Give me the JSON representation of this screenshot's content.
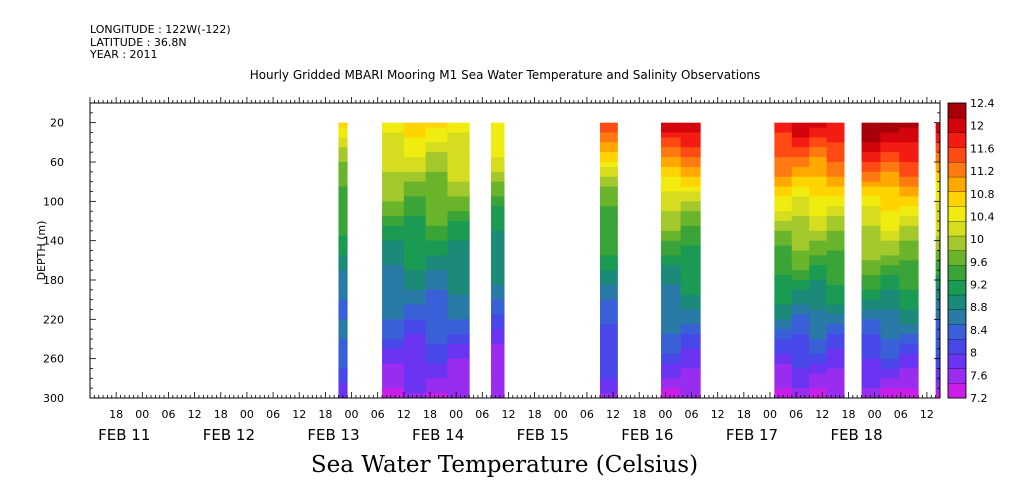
{
  "header": {
    "longitude": "LONGITUDE : 122W(-122)",
    "latitude": "LATITUDE : 36.8N",
    "year": "YEAR : 2011"
  },
  "chart_data": {
    "type": "heatmap",
    "title": "Hourly Gridded MBARI Mooring M1 Sea Water Temperature and Salinity Observations",
    "subtitle": "Sea Water Temperature (Celsius)",
    "ylabel": "DEPTH (m)",
    "xlabel": "",
    "y_inverted": true,
    "y_ticks": [
      20,
      60,
      100,
      140,
      180,
      220,
      260,
      300
    ],
    "ylim": [
      300,
      0
    ],
    "x_hours_range": [
      "2011-02-10 12:00",
      "2011-02-18 15:00"
    ],
    "x_hour_ticks": [
      "18",
      "00",
      "06",
      "12",
      "18",
      "00",
      "06",
      "12",
      "18",
      "00",
      "06",
      "12",
      "18",
      "00",
      "06",
      "12",
      "18",
      "00",
      "06",
      "12",
      "18",
      "00",
      "06",
      "12",
      "18",
      "00",
      "06",
      "12",
      "18",
      "00",
      "06",
      "12"
    ],
    "x_day_labels": [
      "FEB 11",
      "FEB 12",
      "FEB 13",
      "FEB 14",
      "FEB 15",
      "FEB 16",
      "FEB 17",
      "FEB 18"
    ],
    "colorbar": {
      "levels": [
        7.2,
        7.6,
        8,
        8.4,
        8.8,
        9.2,
        9.6,
        10,
        10.4,
        10.8,
        11.2,
        11.6,
        12,
        12.4
      ],
      "colors": [
        "#c81ee8",
        "#9a2cf0",
        "#6a34f2",
        "#4848e8",
        "#3a60d8",
        "#2a7aa8",
        "#1c8a78",
        "#1a9a52",
        "#3aa438",
        "#6ab42c",
        "#a2c82c",
        "#d6dc1e",
        "#f0ec10",
        "#ffd400",
        "#ffa800",
        "#ff7a10",
        "#ff4a14",
        "#f41c12",
        "#d4040c",
        "#a80008"
      ]
    },
    "data_segments": [
      {
        "start": "2011-02-12 21:00",
        "end": "2011-02-12 23:00",
        "surface_temp": 10.6,
        "temp_at_100m": 9.4,
        "temp_at_300m": 7.9
      },
      {
        "start": "2011-02-13 07:00",
        "end": "2011-02-14 03:00",
        "surface_temp": 10.6,
        "temp_at_100m": 9.6,
        "temp_at_300m": 7.5
      },
      {
        "start": "2011-02-14 08:00",
        "end": "2011-02-14 11:00",
        "surface_temp": 10.6,
        "temp_at_100m": 9.5,
        "temp_at_300m": 7.3
      },
      {
        "start": "2011-02-15 09:00",
        "end": "2011-02-15 13:00",
        "surface_temp": 11.4,
        "temp_at_100m": 9.7,
        "temp_at_300m": 7.6
      },
      {
        "start": "2011-02-15 23:00",
        "end": "2011-02-16 08:00",
        "surface_temp": 12.2,
        "temp_at_100m": 10.0,
        "temp_at_300m": 7.5
      },
      {
        "start": "2011-02-17 01:00",
        "end": "2011-02-17 17:00",
        "surface_temp": 12.0,
        "temp_at_100m": 10.4,
        "temp_at_300m": 7.4
      },
      {
        "start": "2011-02-17 21:00",
        "end": "2011-02-18 10:00",
        "surface_temp": 12.4,
        "temp_at_100m": 10.6,
        "temp_at_300m": 7.4
      },
      {
        "start": "2011-02-18 14:00",
        "end": "2011-02-18 15:00",
        "surface_temp": 12.0,
        "temp_at_100m": 10.4,
        "temp_at_300m": 7.4
      }
    ]
  }
}
